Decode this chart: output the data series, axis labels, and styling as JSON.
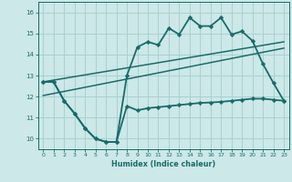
{
  "xlabel": "Humidex (Indice chaleur)",
  "background_color": "#cce8e8",
  "grid_color": "#aacfcf",
  "line_color": "#1a6b6b",
  "xlim": [
    -0.5,
    23.5
  ],
  "ylim": [
    9.5,
    16.5
  ],
  "yticks": [
    10,
    11,
    12,
    13,
    14,
    15,
    16
  ],
  "xticks": [
    0,
    1,
    2,
    3,
    4,
    5,
    6,
    7,
    8,
    9,
    10,
    11,
    12,
    13,
    14,
    15,
    16,
    17,
    18,
    19,
    20,
    21,
    22,
    23
  ],
  "series": [
    {
      "x": [
        0,
        1,
        2,
        3,
        4,
        5,
        6,
        7,
        8,
        9,
        10,
        11,
        12,
        13,
        14,
        15,
        16,
        17,
        18,
        19,
        20,
        21,
        22,
        23
      ],
      "y": [
        12.7,
        12.7,
        11.8,
        11.2,
        10.5,
        10.0,
        9.85,
        9.85,
        11.55,
        11.35,
        11.45,
        11.5,
        11.55,
        11.6,
        11.65,
        11.7,
        11.72,
        11.75,
        11.8,
        11.85,
        11.9,
        11.9,
        11.85,
        11.8
      ],
      "marker": "D",
      "markersize": 2.2,
      "linewidth": 1.3
    },
    {
      "x": [
        0,
        1,
        2,
        3,
        4,
        5,
        6,
        7,
        8,
        9,
        10,
        11,
        12,
        13,
        14,
        15,
        16,
        17,
        18,
        19,
        20,
        21,
        22,
        23
      ],
      "y": [
        12.7,
        12.7,
        11.8,
        11.2,
        10.5,
        10.0,
        9.85,
        9.85,
        13.0,
        14.35,
        14.6,
        14.45,
        15.25,
        14.95,
        15.75,
        15.35,
        15.35,
        15.75,
        14.95,
        15.1,
        14.65,
        13.55,
        12.65,
        11.8
      ],
      "marker": "D",
      "markersize": 2.2,
      "linewidth": 1.3
    },
    {
      "x": [
        0,
        23
      ],
      "y": [
        12.7,
        14.6
      ],
      "marker": null,
      "markersize": 0,
      "linewidth": 1.1
    },
    {
      "x": [
        0,
        23
      ],
      "y": [
        12.05,
        14.3
      ],
      "marker": null,
      "markersize": 0,
      "linewidth": 1.1
    }
  ]
}
